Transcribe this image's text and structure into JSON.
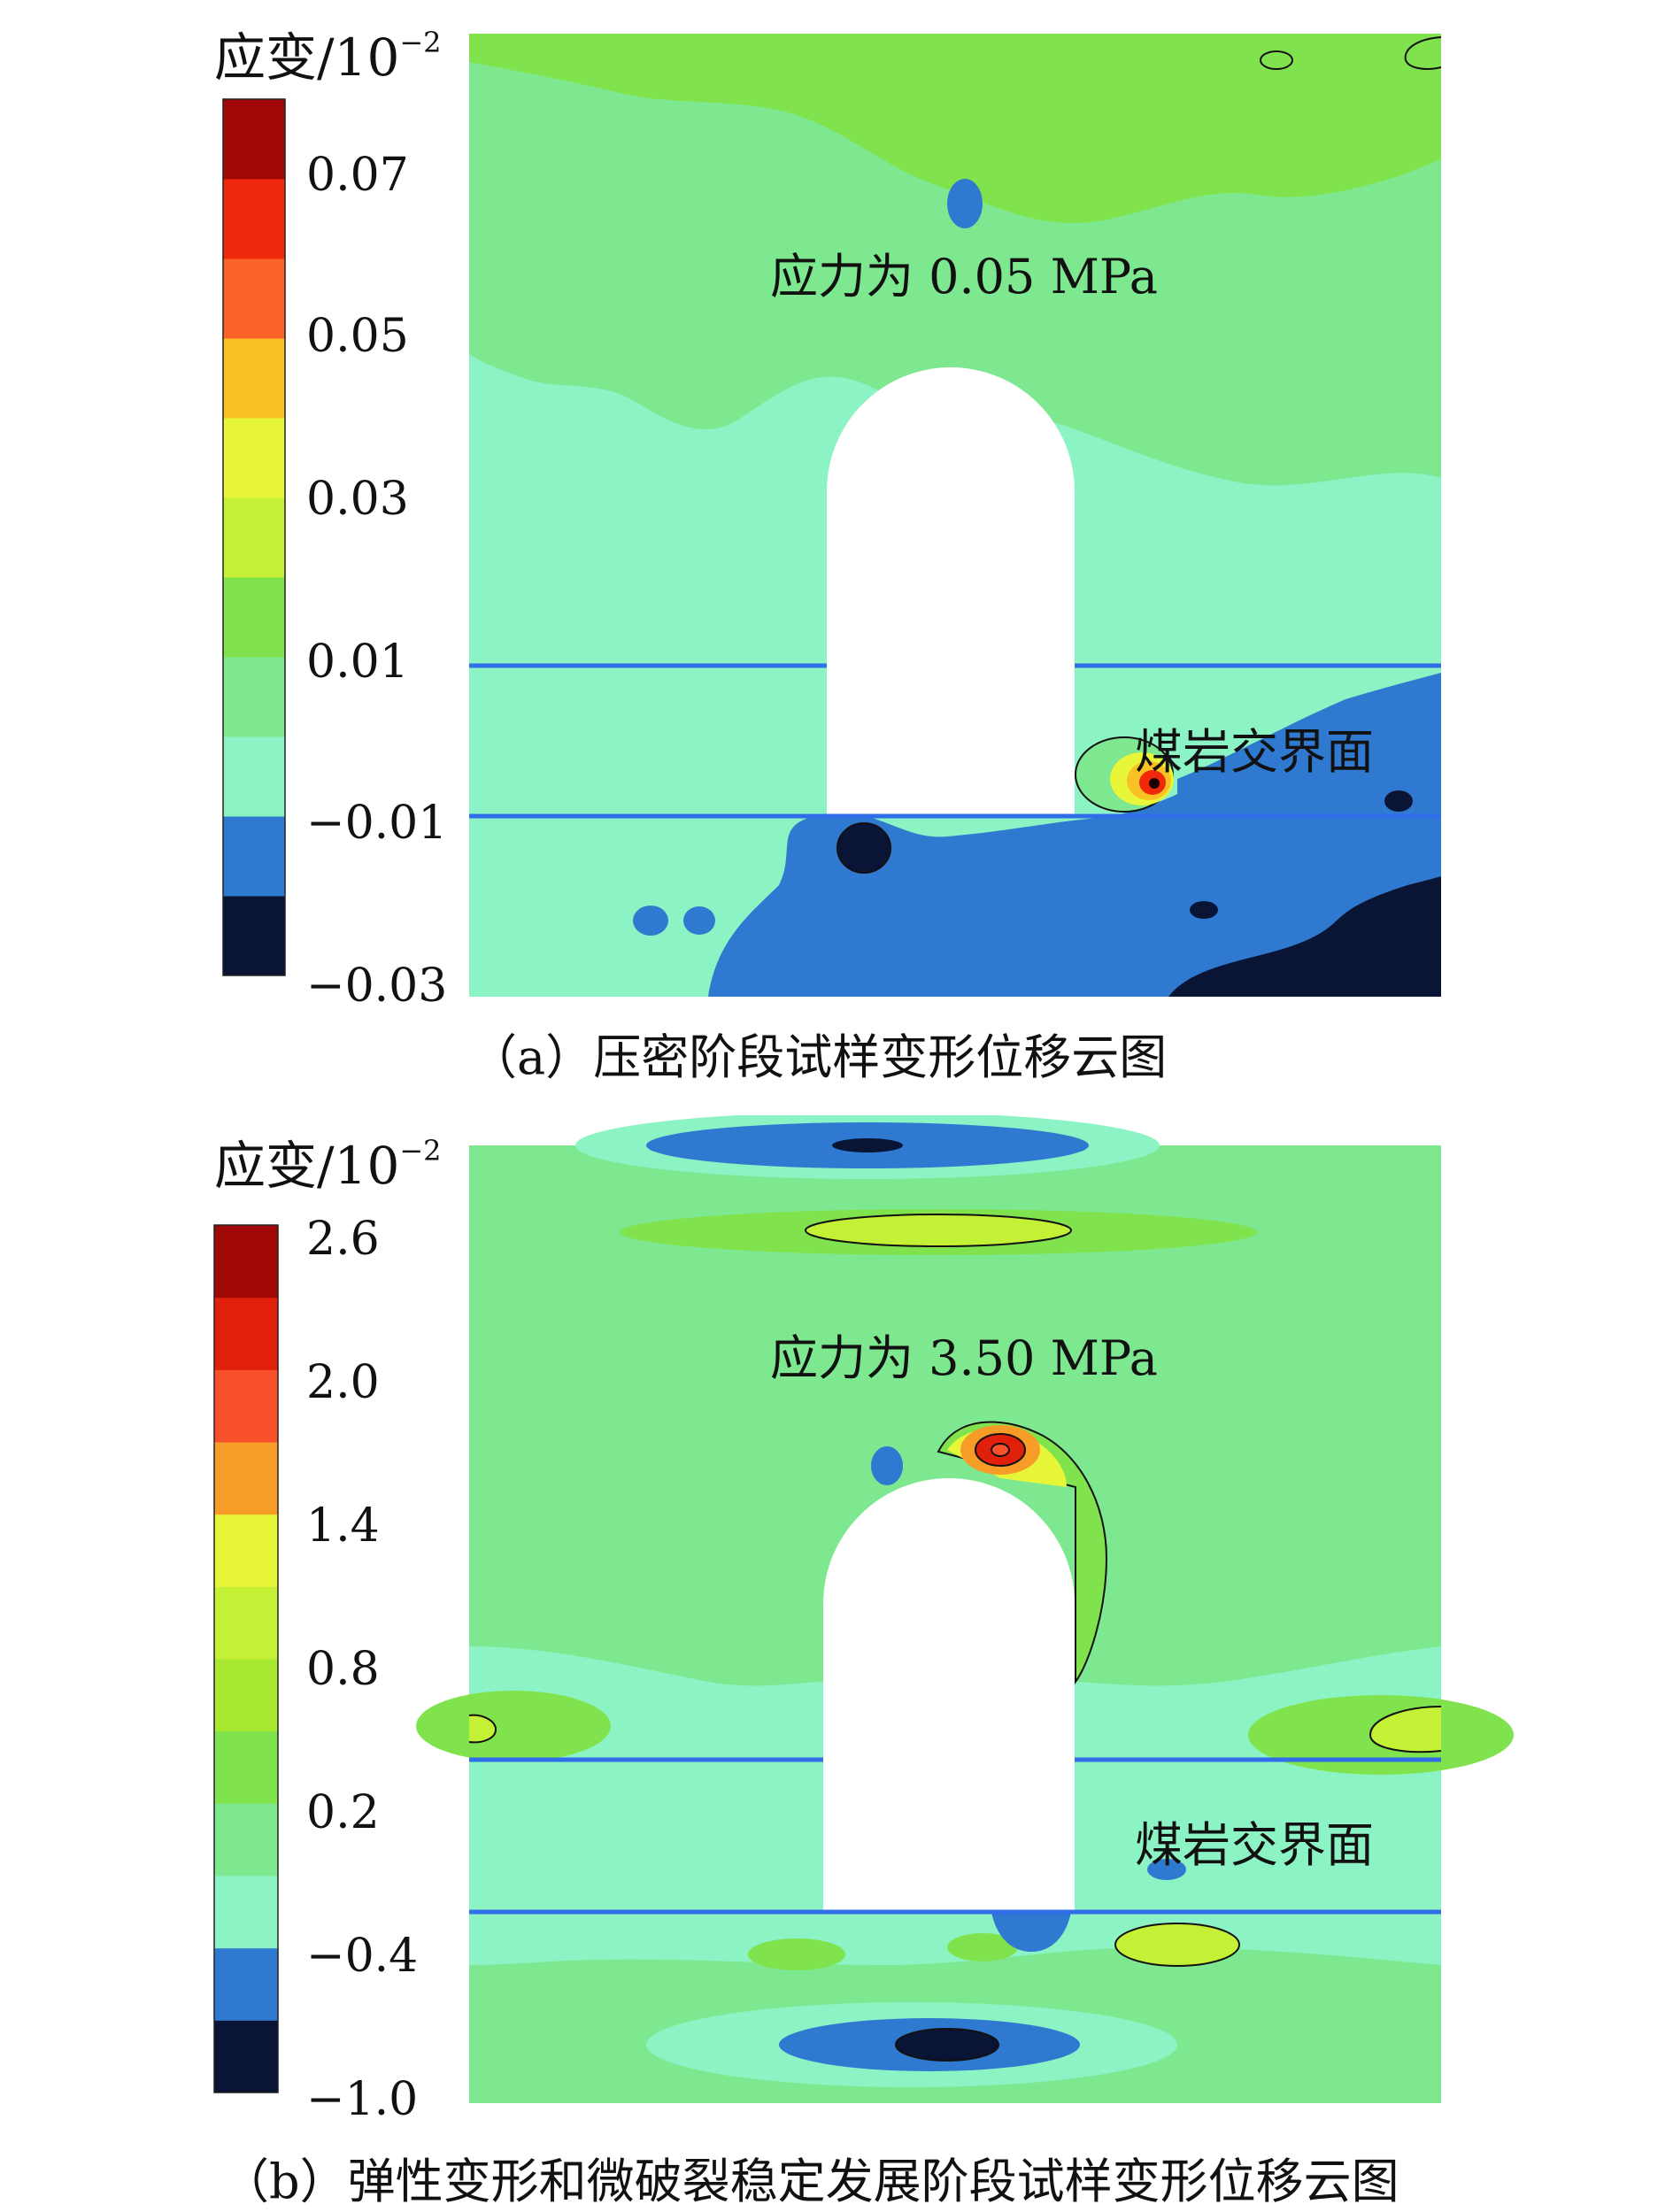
{
  "figures": [
    {
      "colorbar_title": "应变/10",
      "colorbar_exp": "−2",
      "stress_label": "应力为 0.05 MPa",
      "interface_label": "煤岩交界面",
      "caption": "（a）压密阶段试样变形位移云图",
      "colorbar_ticks": [
        "0.07",
        "0.05",
        "0.03",
        "0.01",
        "−0.01",
        "−0.03"
      ]
    },
    {
      "colorbar_title": "应变/10",
      "colorbar_exp": "−2",
      "stress_label": "应力为 3.50 MPa",
      "interface_label": "煤岩交界面",
      "caption": "（b）弹性变形和微破裂稳定发展阶段试样变形位移云图",
      "colorbar_ticks": [
        "2.6",
        "2.0",
        "1.4",
        "0.8",
        "0.2",
        "−0.4",
        "−1.0"
      ]
    }
  ],
  "chart_data": [
    {
      "type": "heatmap",
      "title": "应力为 0.05 MPa",
      "colorbar_label": "应变/10−2",
      "colorbar_ticks": [
        0.07,
        0.05,
        0.03,
        0.01,
        -0.01,
        -0.03
      ],
      "colorbar_range": [
        -0.03,
        0.08
      ],
      "colorbar_colors": [
        "#0a1535",
        "#2f7ad0",
        "#8cf3c4",
        "#7ee890",
        "#80e34e",
        "#c4f036",
        "#e8f63a",
        "#f9c224",
        "#fa6228",
        "#f0280c",
        "#a00808"
      ],
      "annotations": [
        "应力为 0.05 MPa",
        "煤岩交界面"
      ],
      "caption": "（a）压密阶段试样变形位移云图"
    },
    {
      "type": "heatmap",
      "title": "应力为 3.50 MPa",
      "colorbar_label": "应变/10−2",
      "colorbar_ticks": [
        2.6,
        2.0,
        1.4,
        0.8,
        0.2,
        -0.4,
        -1.0
      ],
      "colorbar_range": [
        -1.0,
        2.6
      ],
      "colorbar_colors": [
        "#0a1535",
        "#2f7ad0",
        "#8cf3c4",
        "#7ee890",
        "#80e34e",
        "#a8e830",
        "#c4f036",
        "#e8f63a",
        "#f89c28",
        "#f8502a",
        "#e0200a",
        "#a00808"
      ],
      "annotations": [
        "应力为 3.50 MPa",
        "煤岩交界面"
      ],
      "caption": "（b）弹性变形和微破裂稳定发展阶段试样变形位移云图"
    }
  ]
}
